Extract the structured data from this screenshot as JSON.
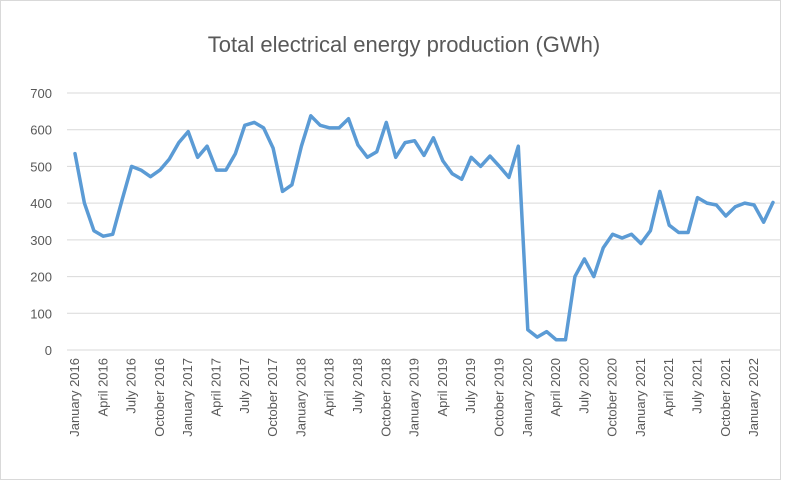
{
  "chart_data": {
    "type": "line",
    "title": "Total electrical energy production (GWh)",
    "categories": [
      "January 2016",
      null,
      null,
      "April 2016",
      null,
      null,
      "July 2016",
      null,
      null,
      "October 2016",
      null,
      null,
      "January 2017",
      null,
      null,
      "April 2017",
      null,
      null,
      "July 2017",
      null,
      null,
      "October 2017",
      null,
      null,
      "January 2018",
      null,
      null,
      "April 2018",
      null,
      null,
      "July 2018",
      null,
      null,
      "October 2018",
      null,
      null,
      "January 2019",
      null,
      null,
      "April 2019",
      null,
      null,
      "July 2019",
      null,
      null,
      "October 2019",
      null,
      null,
      "January 2020",
      null,
      null,
      "April 2020",
      null,
      null,
      "July 2020",
      null,
      null,
      "October 2020",
      null,
      null,
      "January 2021",
      null,
      null,
      "April 2021",
      null,
      null,
      "July 2021",
      null,
      null,
      "October 2021",
      null,
      null,
      "January 2022",
      null,
      null
    ],
    "series": [
      {
        "name": "Total electrical energy production (GWh)",
        "color": "#5b9bd5",
        "values": [
          535,
          400,
          325,
          310,
          315,
          410,
          500,
          490,
          472,
          490,
          520,
          565,
          595,
          525,
          555,
          490,
          490,
          535,
          612,
          620,
          605,
          550,
          432,
          450,
          555,
          638,
          612,
          605,
          605,
          630,
          558,
          525,
          540,
          620,
          525,
          565,
          570,
          530,
          578,
          515,
          480,
          465,
          525,
          500,
          528,
          500,
          470,
          555,
          55,
          35,
          50,
          28,
          28,
          200,
          248,
          200,
          278,
          315,
          305,
          315,
          290,
          325,
          432,
          340,
          320,
          320,
          415,
          400,
          395,
          365,
          390,
          400,
          395,
          348,
          402
        ]
      }
    ],
    "ylim": [
      0,
      700
    ],
    "yticks": [
      0,
      100,
      200,
      300,
      400,
      500,
      600,
      700
    ],
    "grid": true
  }
}
